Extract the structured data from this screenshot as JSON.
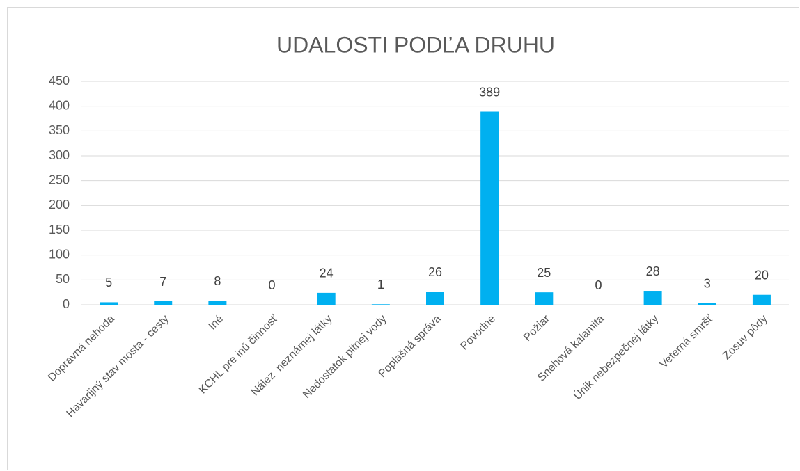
{
  "chart_data": {
    "type": "bar",
    "title": "UDALOSTI PODĽA DRUHU",
    "categories": [
      "Dopravná nehoda",
      "Havarijný stav mosta - cesty",
      "Iné",
      "KCHL pre inú činnosť",
      "Nález  neznámej látky",
      "Nedostatok pitnej vody",
      "Poplašná správa",
      "Povodne",
      "Požiar",
      "Snehová kalamita",
      "Únik nebezpečnej látky",
      "Veterná smršť",
      "Zosuv pôdy"
    ],
    "values": [
      5,
      7,
      8,
      0,
      24,
      1,
      26,
      389,
      25,
      0,
      28,
      3,
      20
    ],
    "color": "#00b0f0",
    "ylim": [
      0,
      450
    ],
    "yticks": [
      0,
      50,
      100,
      150,
      200,
      250,
      300,
      350,
      400,
      450
    ],
    "grid": true
  }
}
